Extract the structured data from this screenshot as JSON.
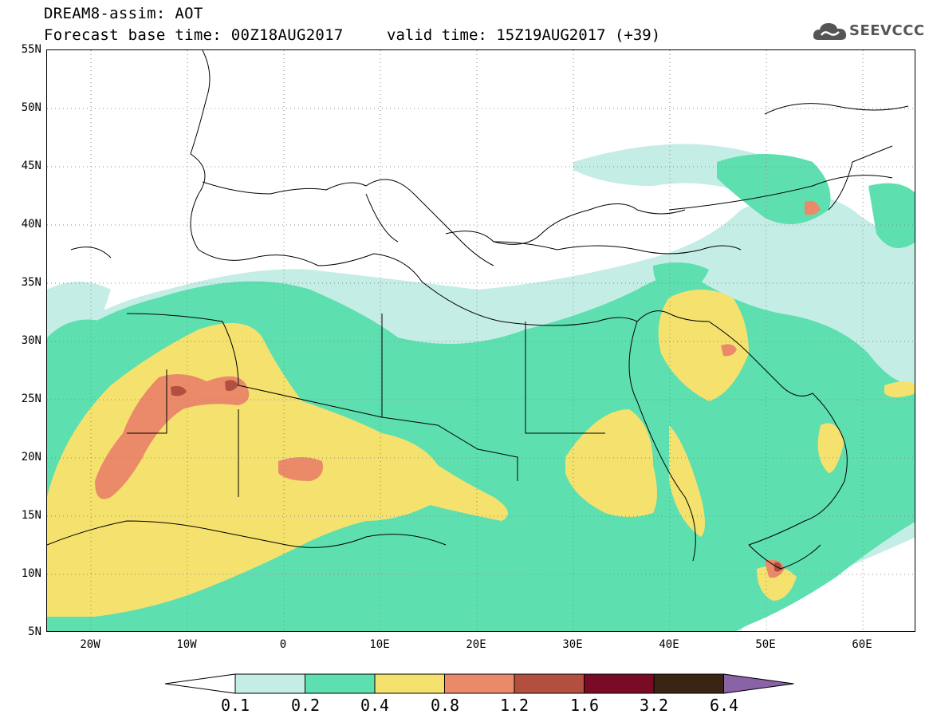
{
  "header": {
    "model_line": "DREAM8-assim: AOT",
    "base_time_line": "Forecast base time: 00Z18AUG2017",
    "valid_time_line": "valid time: 15Z19AUG2017 (+39)",
    "logo_text": "SEEVCCC"
  },
  "map": {
    "lat_labels": [
      "55N",
      "50N",
      "45N",
      "40N",
      "35N",
      "30N",
      "25N",
      "20N",
      "15N",
      "10N",
      "5N"
    ],
    "lon_labels": [
      "20W",
      "10W",
      "0",
      "10E",
      "20E",
      "30E",
      "40E",
      "50E",
      "60E"
    ],
    "lat_range": [
      5,
      55
    ],
    "lon_range": [
      -25,
      65
    ]
  },
  "legend": {
    "levels": [
      "0.1",
      "0.2",
      "0.4",
      "0.8",
      "1.2",
      "1.6",
      "3.2",
      "6.4"
    ],
    "colors": [
      "#ffffff",
      "#c4ede6",
      "#5edfb0",
      "#f5e26e",
      "#ea8a68",
      "#b24f40",
      "#7a0b26",
      "#3a2413",
      "#8a63a6"
    ]
  }
}
